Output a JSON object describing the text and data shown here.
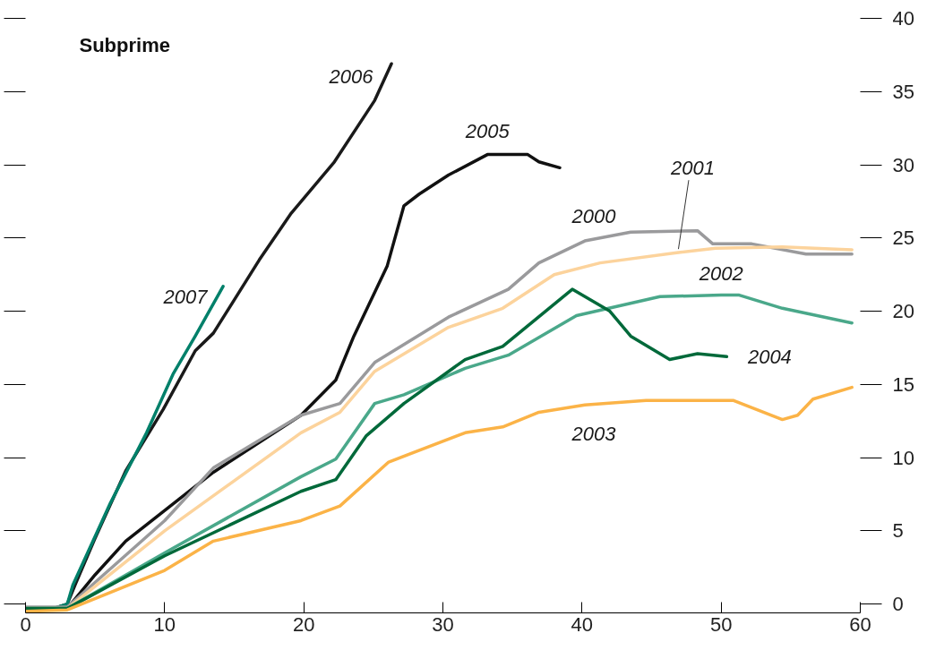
{
  "chart_data": {
    "type": "line",
    "title": "Subprime",
    "xlim": [
      0,
      60
    ],
    "xticks": [
      0,
      10,
      20,
      30,
      40,
      50,
      60
    ],
    "ylim": [
      -0.6,
      40
    ],
    "yticks": [
      0,
      5,
      10,
      15,
      20,
      25,
      30,
      35,
      40
    ],
    "grid": false,
    "marker": "none",
    "line_style": "solid",
    "series": [
      {
        "name": "2006",
        "color": "#1a1a1a",
        "x": [
          0,
          2,
          3,
          3.6,
          5,
          7.2,
          9.9,
          12.2,
          13.5,
          16.8,
          19.1,
          22.2,
          25.1,
          26.3
        ],
        "values": [
          -0.3,
          -0.3,
          0,
          1.4,
          4.5,
          9.1,
          13.3,
          17.3,
          18.5,
          23.5,
          26.7,
          30.2,
          34.4,
          36.9
        ]
      },
      {
        "name": "2007",
        "color": "#00806a",
        "x": [
          0,
          2,
          3,
          3.4,
          6.1,
          8.7,
          10.6,
          12.2,
          14.2
        ],
        "values": [
          -0.3,
          -0.3,
          0,
          1.3,
          6.9,
          11.7,
          15.7,
          18.3,
          21.7
        ]
      },
      {
        "name": "2005",
        "color": "#111111",
        "x": [
          0,
          3,
          5,
          7.2,
          13.5,
          19.8,
          22.3,
          23.6,
          26,
          27.2,
          28.3,
          30.4,
          33.2,
          36.1,
          36.9,
          38.4
        ],
        "values": [
          -0.3,
          -0.3,
          2.0,
          4.3,
          9.0,
          12.9,
          15.3,
          18.3,
          23.1,
          27.2,
          28,
          29.3,
          30.7,
          30.7,
          30.2,
          29.8
        ]
      },
      {
        "name": "2000",
        "color": "#9a9a9c",
        "x": [
          0,
          3,
          10,
          13.5,
          19.8,
          22.6,
          25.1,
          30.4,
          34.7,
          36.9,
          40.2,
          43.5,
          48.3,
          49.4,
          52.2,
          56.1,
          59.4
        ],
        "values": [
          -0.2,
          -0.2,
          5.7,
          9.3,
          12.9,
          13.7,
          16.5,
          19.6,
          21.5,
          23.3,
          24.8,
          25.4,
          25.5,
          24.6,
          24.6,
          23.9,
          23.9
        ]
      },
      {
        "name": "2001",
        "color": "#fcd39c",
        "x": [
          0,
          3,
          10,
          19.8,
          22.6,
          25.1,
          30.4,
          34.3,
          38,
          41.3,
          46.8,
          49.6,
          54.4,
          59.4
        ],
        "values": [
          -0.3,
          -0.3,
          5,
          11.7,
          13.1,
          15.9,
          18.9,
          20.2,
          22.5,
          23.3,
          24,
          24.3,
          24.4,
          24.2
        ]
      },
      {
        "name": "2002",
        "color": "#4aa88a",
        "x": [
          0,
          3,
          10,
          19.8,
          22.3,
          25.1,
          27.2,
          31.6,
          34.7,
          39.6,
          45.6,
          50,
          51.3,
          54.4,
          59.4
        ],
        "values": [
          -0.3,
          -0.3,
          3.5,
          8.7,
          9.9,
          13.7,
          14.3,
          16.1,
          17,
          19.7,
          21,
          21.1,
          21.1,
          20.2,
          19.2
        ]
      },
      {
        "name": "2004",
        "color": "#00693a",
        "x": [
          0,
          3,
          10,
          19.8,
          22.3,
          24.5,
          27.2,
          31.6,
          34.3,
          39.3,
          42,
          43.5,
          46.3,
          48.3,
          50.4
        ],
        "values": [
          -0.3,
          -0.3,
          3.3,
          7.7,
          8.5,
          11.5,
          13.7,
          16.7,
          17.6,
          21.5,
          20,
          18.3,
          16.7,
          17.1,
          16.9
        ]
      },
      {
        "name": "2003",
        "color": "#fbb347",
        "x": [
          0,
          3,
          10,
          13.5,
          19.8,
          22.6,
          26.1,
          31.6,
          34.3,
          36.9,
          40.2,
          44.6,
          50.9,
          54.4,
          55.5,
          56.6,
          59.4
        ],
        "values": [
          -0.5,
          -0.4,
          2.3,
          4.3,
          5.7,
          6.7,
          9.7,
          11.7,
          12.1,
          13.1,
          13.6,
          13.9,
          13.9,
          12.6,
          12.9,
          14,
          14.8
        ]
      }
    ]
  }
}
